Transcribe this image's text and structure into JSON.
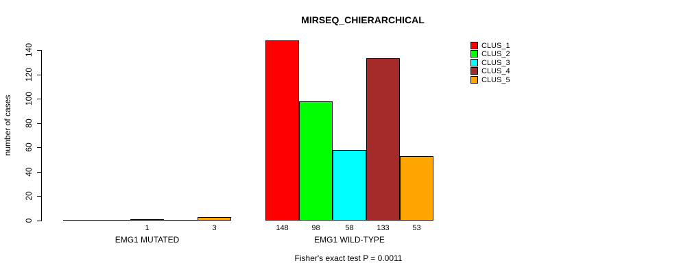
{
  "chart_data": {
    "type": "bar",
    "title": "MIRSEQ_CHIERARCHICAL",
    "ylabel": "number of cases",
    "xlabel": "",
    "ylim": [
      0,
      140
    ],
    "yticks": [
      0,
      20,
      40,
      60,
      80,
      100,
      120,
      140
    ],
    "grid": false,
    "legend_position": "right",
    "series": [
      {
        "name": "CLUS_1",
        "color": "#FF0000"
      },
      {
        "name": "CLUS_2",
        "color": "#00FF00"
      },
      {
        "name": "CLUS_3",
        "color": "#00FFFF"
      },
      {
        "name": "CLUS_4",
        "color": "#A52A2A"
      },
      {
        "name": "CLUS_5",
        "color": "#FFA500"
      }
    ],
    "groups": [
      {
        "label": "EMG1 MUTATED",
        "values": [
          0,
          0,
          1,
          0,
          3
        ],
        "value_labels": [
          "",
          "",
          "1",
          "",
          "3"
        ]
      },
      {
        "label": "EMG1 WILD-TYPE",
        "values": [
          148,
          98,
          58,
          133,
          53
        ],
        "value_labels": [
          "148",
          "98",
          "58",
          "133",
          "53"
        ]
      }
    ],
    "annotation": "Fisher's exact test P = 0.0011"
  }
}
